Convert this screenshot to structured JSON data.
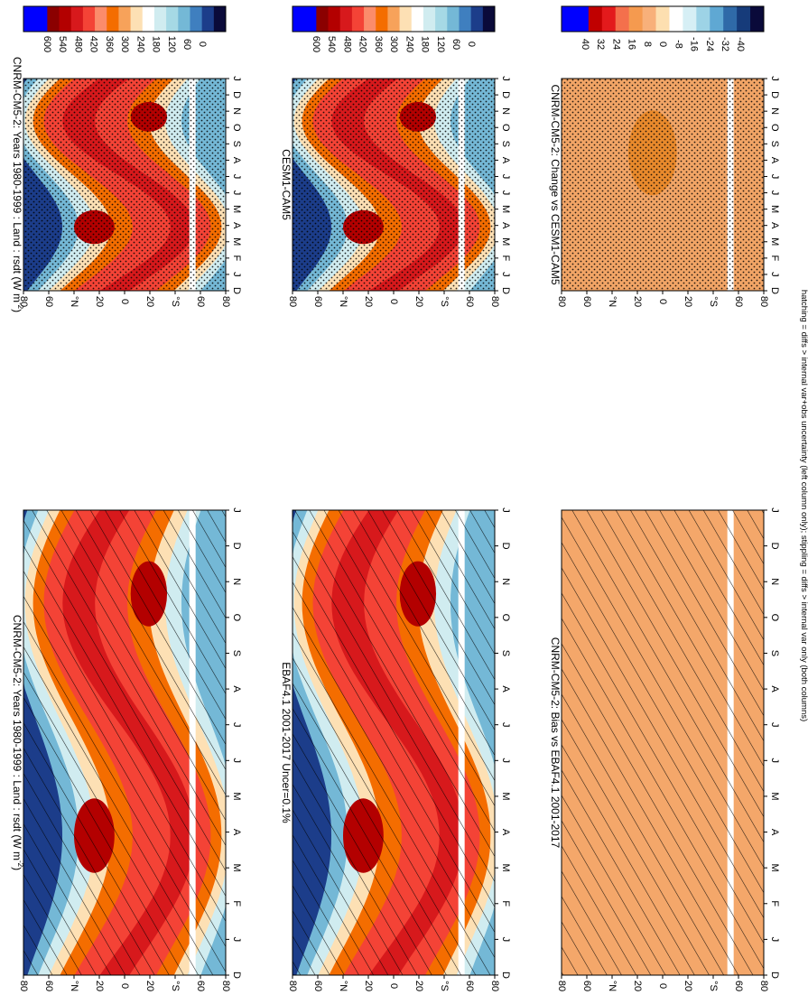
{
  "footnote": "hatching = diffs > internal var+obs uncertainty (left column only); stippling = diffs > internal var only (both columns)",
  "month_labels": [
    "D",
    "J",
    "F",
    "M",
    "A",
    "M",
    "J",
    "J",
    "A",
    "S",
    "O",
    "N",
    "D",
    "J"
  ],
  "lat_labels": [
    "80",
    "60",
    "°N",
    "20",
    "0",
    "20",
    "°S",
    "60",
    "80"
  ],
  "scales": {
    "abs": [
      "600",
      "540",
      "480",
      "420",
      "360",
      "300",
      "240",
      "180",
      "120",
      "60",
      "0"
    ],
    "diff": [
      "40",
      "32",
      "24",
      "16",
      "8",
      "0",
      "-8",
      "-16",
      "-24",
      "-32",
      "-40"
    ]
  },
  "colors": {
    "abs": [
      "#0000ff",
      "#0000ff",
      "#8b0000",
      "#b30000",
      "#d7191c",
      "#f44336",
      "#fb8c6b",
      "#f46d00",
      "#f7a25a",
      "#fde0b4",
      "#ffffff",
      "#d0ecf0",
      "#a6d9e5",
      "#74b8d6",
      "#3f7fbf",
      "#1c3d8a",
      "#0a0a3a"
    ],
    "diff": [
      "#0000ff",
      "#0000ff",
      "#c00000",
      "#e31a1c",
      "#f4704c",
      "#f59a4f",
      "#f8b07a",
      "#fddfb0",
      "#ffffff",
      "#d6eff5",
      "#9dd3e6",
      "#5fa8d3",
      "#2f6aa8",
      "#163b7a",
      "#0a0a3a"
    ],
    "bias_fill": "#f4a76a",
    "change_fill": "#f2a566",
    "change_dark": "#e98a2c"
  },
  "panels": [
    {
      "id": "model_left",
      "title": "CNRM-CM5-2: Years 1980-1999 : Land : rsdt (W m",
      "title_sup": "-2",
      "title_end": ")",
      "scale": "abs",
      "kind": "abs",
      "overlay": "hatch"
    },
    {
      "id": "obs",
      "title": "EBAF4.1 2001-2017 Uncer=0.1%",
      "scale": "abs",
      "kind": "abs",
      "overlay": "hatch"
    },
    {
      "id": "bias",
      "title": "CNRM-CM5-2: Bias vs EBAF4.1 2001-2017",
      "scale": "diff",
      "kind": "bias",
      "overlay": "hatch"
    },
    {
      "id": "model_right",
      "title": "CNRM-CM5-2: Years 1980-1999 : Land : rsdt (W m",
      "title_sup": "-2",
      "title_end": ")",
      "scale": "abs",
      "kind": "abs",
      "overlay": "stipple"
    },
    {
      "id": "cesm",
      "title": "CESM1-CAM5",
      "scale": "abs",
      "kind": "abs",
      "overlay": "stipple"
    },
    {
      "id": "change",
      "title": "CNRM-CM5-2: Change vs CESM1-CAM5",
      "scale": "diff",
      "kind": "change",
      "overlay": "stipple"
    }
  ],
  "chart_data": {
    "type": "heatmap",
    "variable": "rsdt",
    "units": "W m-2",
    "x": [
      "D",
      "J",
      "F",
      "M",
      "A",
      "M",
      "J",
      "J",
      "A",
      "S",
      "O",
      "N",
      "D",
      "J"
    ],
    "y": [
      "80",
      "60",
      "°N",
      "20",
      "0",
      "20",
      "°S",
      "60",
      "80"
    ],
    "colorbar_absolute": [
      600,
      540,
      480,
      420,
      360,
      300,
      240,
      180,
      120,
      60,
      0
    ],
    "colorbar_difference": [
      40,
      32,
      24,
      16,
      8,
      0,
      -8,
      -16,
      -24,
      -32,
      -40
    ],
    "panel_titles": [
      "CNRM-CM5-2: Years 1980-1999 : Land : rsdt (W m-2)",
      "EBAF4.1 2001-2017 Uncer=0.1%",
      "CNRM-CM5-2: Bias vs EBAF4.1 2001-2017",
      "CNRM-CM5-2: Years 1980-1999 : Land : rsdt (W m-2)",
      "CESM1-CAM5",
      "CNRM-CM5-2: Change vs CESM1-CAM5"
    ]
  }
}
